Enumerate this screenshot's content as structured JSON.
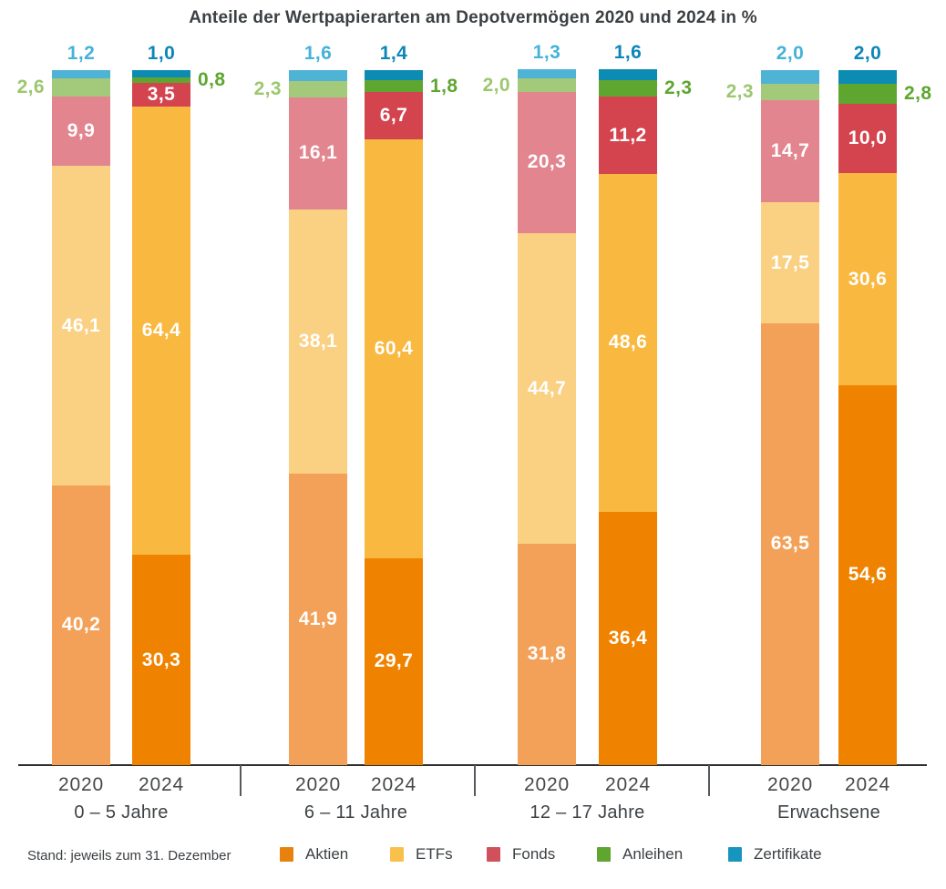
{
  "title": "Anteile der Wertpapierarten am Depotvermögen 2020 und 2024 in %",
  "footer": {
    "note": "Stand: jeweils zum 31. Dezember"
  },
  "legend": [
    {
      "label": "Aktien",
      "color": "#E8820E"
    },
    {
      "label": "ETFs",
      "color": "#F9C14C"
    },
    {
      "label": "Fonds",
      "color": "#D0505C"
    },
    {
      "label": "Anleihen",
      "color": "#5EA630"
    },
    {
      "label": "Zertifikate",
      "color": "#1895BE"
    }
  ],
  "chart_data": {
    "type": "bar",
    "stacked": true,
    "orientation": "vertical",
    "unit": "%",
    "value_axis_range": [
      0,
      100
    ],
    "grid": false,
    "decimal_separator": ",",
    "title": "Anteile der Wertpapierarten am Depotvermögen 2020 und 2024 in %",
    "legend_position": "bottom",
    "series_order": [
      "Aktien",
      "ETFs",
      "Fonds",
      "Anleihen",
      "Zertifikate"
    ],
    "year_labels": [
      "2020",
      "2024"
    ],
    "categories": [
      "0 – 5 Jahre",
      "6 – 11 Jahre",
      "12 – 17 Jahre",
      "Erwachsene"
    ],
    "series_colors": {
      "2020": {
        "Aktien": "#F3A159",
        "ETFs": "#FAD083",
        "Fonds": "#E2858E",
        "Anleihen": "#A3C97B",
        "Zertifikate": "#4FB3D6"
      },
      "2024": {
        "Aktien": "#EF8300",
        "ETFs": "#F9B840",
        "Fonds": "#D3444E",
        "Anleihen": "#5EA630",
        "Zertifikate": "#0C8CB2"
      }
    },
    "outside_label_colors": {
      "2020": {
        "Anleihen": "#9CC76F",
        "Zertifikate": "#45B2D9"
      },
      "2024": {
        "Anleihen": "#5EA630",
        "Zertifikate": "#0C86B8"
      }
    },
    "groups": [
      {
        "label": "0 – 5 Jahre",
        "bars": [
          {
            "year": "2020",
            "values": {
              "Aktien": 40.2,
              "ETFs": 46.1,
              "Fonds": 9.9,
              "Anleihen": 2.6,
              "Zertifikate": 1.2
            }
          },
          {
            "year": "2024",
            "values": {
              "Aktien": 30.3,
              "ETFs": 64.4,
              "Fonds": 3.5,
              "Anleihen": 0.8,
              "Zertifikate": 1.0
            }
          }
        ]
      },
      {
        "label": "6 – 11 Jahre",
        "bars": [
          {
            "year": "2020",
            "values": {
              "Aktien": 41.9,
              "ETFs": 38.1,
              "Fonds": 16.1,
              "Anleihen": 2.3,
              "Zertifikate": 1.6
            }
          },
          {
            "year": "2024",
            "values": {
              "Aktien": 29.7,
              "ETFs": 60.4,
              "Fonds": 6.7,
              "Anleihen": 1.8,
              "Zertifikate": 1.4
            }
          }
        ]
      },
      {
        "label": "12 – 17 Jahre",
        "bars": [
          {
            "year": "2020",
            "values": {
              "Aktien": 31.8,
              "ETFs": 44.7,
              "Fonds": 20.3,
              "Anleihen": 2.0,
              "Zertifikate": 1.3
            }
          },
          {
            "year": "2024",
            "values": {
              "Aktien": 36.4,
              "ETFs": 48.6,
              "Fonds": 11.2,
              "Anleihen": 2.3,
              "Zertifikate": 1.6
            }
          }
        ]
      },
      {
        "label": "Erwachsene",
        "bars": [
          {
            "year": "2020",
            "values": {
              "Aktien": 63.5,
              "ETFs": 17.5,
              "Fonds": 14.7,
              "Anleihen": 2.3,
              "Zertifikate": 2.0
            }
          },
          {
            "year": "2024",
            "values": {
              "Aktien": 54.6,
              "ETFs": 30.6,
              "Fonds": 10.0,
              "Anleihen": 2.8,
              "Zertifikate": 2.0
            }
          }
        ]
      }
    ]
  }
}
